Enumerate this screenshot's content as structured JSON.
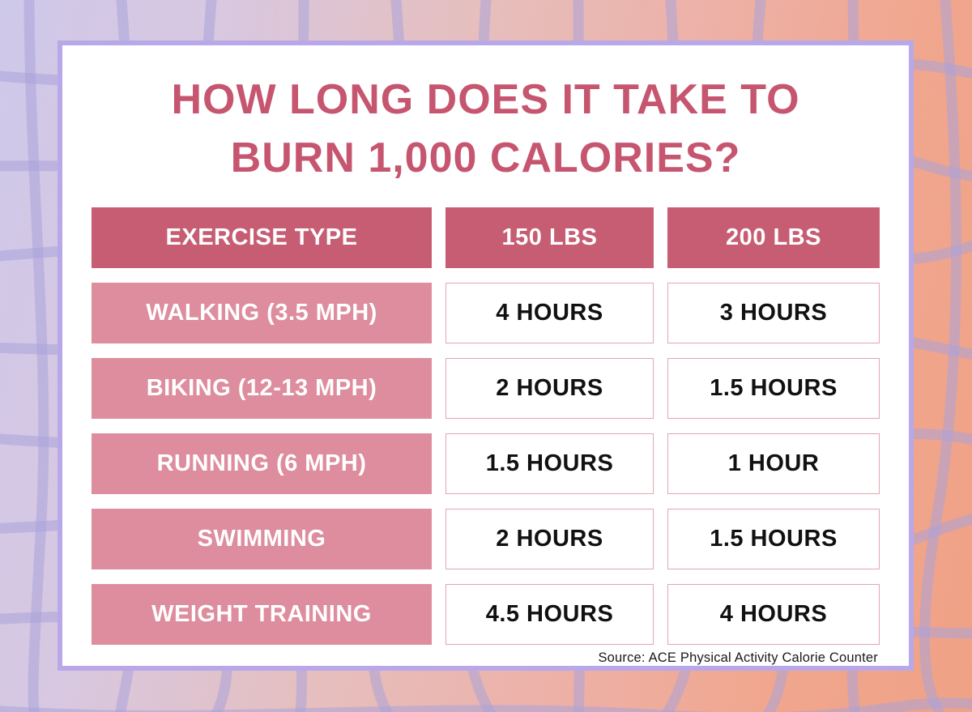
{
  "title": {
    "line1": "HOW LONG DOES IT TAKE TO",
    "line2": "BURN 1,000 CALORIES?"
  },
  "table": {
    "headers": [
      "EXERCISE TYPE",
      "150 LBS",
      "200 LBS"
    ],
    "rows": [
      {
        "exercise": "WALKING (3.5 MPH)",
        "hours_150": "4 HOURS",
        "hours_200": "3 HOURS"
      },
      {
        "exercise": "BIKING (12-13 MPH)",
        "hours_150": "2 HOURS",
        "hours_200": "1.5 HOURS"
      },
      {
        "exercise": "RUNNING (6 MPH)",
        "hours_150": "1.5 HOURS",
        "hours_200": "1 HOUR"
      },
      {
        "exercise": "SWIMMING",
        "hours_150": "2 HOURS",
        "hours_200": "1.5 HOURS"
      },
      {
        "exercise": "WEIGHT TRAINING",
        "hours_150": "4.5 HOURS",
        "hours_200": "4 HOURS"
      }
    ]
  },
  "source": "Source: ACE Physical Activity Calorie Counter",
  "colors": {
    "title_text": "#c6566f",
    "header_cell_bg": "#c65d73",
    "exercise_cell_bg": "#dd8d9d",
    "value_cell_border": "#e2a5b1",
    "value_text": "#111111",
    "card_border": "#b8a8e9",
    "grid_lines": "#a9a2db",
    "bg_gradient_left": "#cfc9eb",
    "bg_gradient_mid": "#eeb1a8",
    "bg_gradient_right": "#f1a184"
  },
  "chart_data": {
    "type": "table",
    "title": "HOW LONG DOES IT TAKE TO BURN 1,000 CALORIES?",
    "columns": [
      "EXERCISE TYPE",
      "150 LBS",
      "200 LBS"
    ],
    "rows": [
      [
        "WALKING (3.5 MPH)",
        "4 HOURS",
        "3 HOURS"
      ],
      [
        "BIKING (12-13 MPH)",
        "2 HOURS",
        "1.5 HOURS"
      ],
      [
        "RUNNING (6 MPH)",
        "1.5 HOURS",
        "1 HOUR"
      ],
      [
        "SWIMMING",
        "2 HOURS",
        "1.5 HOURS"
      ],
      [
        "WEIGHT TRAINING",
        "4.5 HOURS",
        "4 HOURS"
      ]
    ],
    "hours_numeric": {
      "categories": [
        "Walking (3.5 mph)",
        "Biking (12-13 mph)",
        "Running (6 mph)",
        "Swimming",
        "Weight training"
      ],
      "series": [
        {
          "name": "150 lbs",
          "values": [
            4,
            2,
            1.5,
            2,
            4.5
          ]
        },
        {
          "name": "200 lbs",
          "values": [
            3,
            1.5,
            1,
            1.5,
            4
          ]
        }
      ]
    },
    "source": "Source: ACE Physical Activity Calorie Counter"
  }
}
